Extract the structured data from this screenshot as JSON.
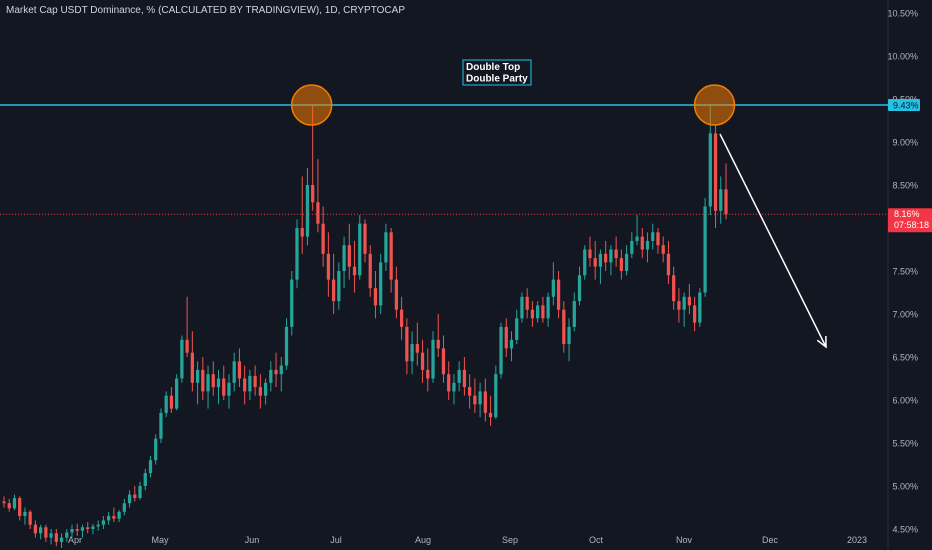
{
  "header": {
    "title": "Market Cap USDT Dominance, % (CALCULATED BY TRADINGVIEW), 1D, CRYPTOCAP"
  },
  "annotation": {
    "line1": "Double Top",
    "line2": "Double Party"
  },
  "price_labels": {
    "level": "9.43%",
    "current": "8.16%",
    "countdown": "07:58:18"
  },
  "colors": {
    "background": "#131722",
    "up": "#26a69a",
    "down": "#ef5350",
    "level_line": "#22c3e6",
    "circle": "#f57c00",
    "arrow": "#ffffff",
    "current_price": "#f23645"
  },
  "chart_data": {
    "type": "candlestick",
    "title": "Market Cap USDT Dominance, % (CALCULATED BY TRADINGVIEW), 1D, CRYPTOCAP",
    "xlabel": "",
    "ylabel": "",
    "ylim": [
      4.5,
      10.5
    ],
    "y_ticks": [
      "10.50%",
      "10.00%",
      "9.50%",
      "9.00%",
      "8.50%",
      "8.00%",
      "7.50%",
      "7.00%",
      "6.50%",
      "6.00%",
      "5.50%",
      "5.00%",
      "4.50%"
    ],
    "x_ticks": [
      "Apr",
      "May",
      "Jun",
      "Jul",
      "Aug",
      "Sep",
      "Oct",
      "Nov",
      "Dec",
      "2023"
    ],
    "grid": false,
    "horizontal_level": 9.43,
    "current_price": 8.16,
    "series": [
      {
        "values": [
          [
            4.82,
            4.88,
            4.75,
            4.8
          ],
          [
            4.8,
            4.85,
            4.7,
            4.74
          ],
          [
            4.74,
            4.9,
            4.72,
            4.86
          ],
          [
            4.86,
            4.88,
            4.6,
            4.65
          ],
          [
            4.65,
            4.75,
            4.55,
            4.7
          ],
          [
            4.7,
            4.72,
            4.5,
            4.55
          ],
          [
            4.55,
            4.6,
            4.4,
            4.45
          ],
          [
            4.45,
            4.55,
            4.38,
            4.52
          ],
          [
            4.52,
            4.55,
            4.35,
            4.4
          ],
          [
            4.4,
            4.5,
            4.32,
            4.45
          ],
          [
            4.45,
            4.5,
            4.3,
            4.35
          ],
          [
            4.35,
            4.45,
            4.28,
            4.4
          ],
          [
            4.4,
            4.5,
            4.35,
            4.46
          ],
          [
            4.46,
            4.55,
            4.4,
            4.5
          ],
          [
            4.5,
            4.56,
            4.42,
            4.48
          ],
          [
            4.48,
            4.55,
            4.4,
            4.52
          ],
          [
            4.52,
            4.58,
            4.45,
            4.5
          ],
          [
            4.5,
            4.56,
            4.44,
            4.53
          ],
          [
            4.53,
            4.6,
            4.48,
            4.55
          ],
          [
            4.55,
            4.65,
            4.5,
            4.6
          ],
          [
            4.6,
            4.7,
            4.55,
            4.65
          ],
          [
            4.65,
            4.75,
            4.58,
            4.62
          ],
          [
            4.62,
            4.72,
            4.58,
            4.7
          ],
          [
            4.7,
            4.85,
            4.66,
            4.8
          ],
          [
            4.8,
            4.95,
            4.75,
            4.9
          ],
          [
            4.9,
            5.0,
            4.82,
            4.86
          ],
          [
            4.86,
            5.05,
            4.84,
            5.0
          ],
          [
            5.0,
            5.2,
            4.95,
            5.15
          ],
          [
            5.15,
            5.35,
            5.1,
            5.3
          ],
          [
            5.3,
            5.6,
            5.25,
            5.55
          ],
          [
            5.55,
            5.9,
            5.5,
            5.85
          ],
          [
            5.85,
            6.1,
            5.8,
            6.05
          ],
          [
            6.05,
            6.15,
            5.85,
            5.9
          ],
          [
            5.9,
            6.3,
            5.88,
            6.25
          ],
          [
            6.25,
            6.75,
            6.2,
            6.7
          ],
          [
            6.7,
            7.2,
            6.5,
            6.55
          ],
          [
            6.55,
            6.8,
            6.1,
            6.2
          ],
          [
            6.2,
            6.45,
            5.95,
            6.35
          ],
          [
            6.35,
            6.5,
            6.0,
            6.1
          ],
          [
            6.1,
            6.4,
            5.9,
            6.3
          ],
          [
            6.3,
            6.45,
            6.05,
            6.15
          ],
          [
            6.15,
            6.35,
            5.95,
            6.25
          ],
          [
            6.25,
            6.4,
            6.0,
            6.05
          ],
          [
            6.05,
            6.3,
            5.9,
            6.2
          ],
          [
            6.2,
            6.55,
            6.1,
            6.45
          ],
          [
            6.45,
            6.6,
            6.15,
            6.25
          ],
          [
            6.25,
            6.4,
            5.95,
            6.1
          ],
          [
            6.1,
            6.35,
            6.0,
            6.28
          ],
          [
            6.28,
            6.4,
            6.05,
            6.15
          ],
          [
            6.15,
            6.3,
            5.9,
            6.05
          ],
          [
            6.05,
            6.25,
            5.95,
            6.2
          ],
          [
            6.2,
            6.45,
            6.1,
            6.35
          ],
          [
            6.35,
            6.55,
            6.15,
            6.3
          ],
          [
            6.3,
            6.5,
            6.1,
            6.4
          ],
          [
            6.4,
            6.95,
            6.35,
            6.85
          ],
          [
            6.85,
            7.5,
            6.75,
            7.4
          ],
          [
            7.4,
            8.1,
            7.3,
            8.0
          ],
          [
            8.0,
            8.6,
            7.7,
            7.9
          ],
          [
            7.9,
            8.7,
            7.8,
            8.5
          ],
          [
            8.5,
            9.43,
            8.2,
            8.3
          ],
          [
            8.3,
            8.8,
            7.95,
            8.05
          ],
          [
            8.05,
            8.25,
            7.55,
            7.7
          ],
          [
            7.7,
            7.95,
            7.2,
            7.4
          ],
          [
            7.4,
            7.7,
            7.0,
            7.15
          ],
          [
            7.15,
            7.6,
            7.05,
            7.5
          ],
          [
            7.5,
            7.9,
            7.3,
            7.8
          ],
          [
            7.8,
            8.05,
            7.4,
            7.55
          ],
          [
            7.55,
            7.85,
            7.25,
            7.45
          ],
          [
            7.45,
            8.15,
            7.4,
            8.05
          ],
          [
            8.05,
            8.1,
            7.6,
            7.7
          ],
          [
            7.7,
            7.8,
            7.2,
            7.3
          ],
          [
            7.3,
            7.5,
            6.95,
            7.1
          ],
          [
            7.1,
            7.7,
            7.0,
            7.6
          ],
          [
            7.6,
            8.05,
            7.5,
            7.95
          ],
          [
            7.95,
            8.0,
            7.25,
            7.4
          ],
          [
            7.4,
            7.55,
            6.95,
            7.05
          ],
          [
            7.05,
            7.2,
            6.7,
            6.85
          ],
          [
            6.85,
            6.95,
            6.3,
            6.45
          ],
          [
            6.45,
            6.8,
            6.3,
            6.65
          ],
          [
            6.65,
            6.9,
            6.4,
            6.55
          ],
          [
            6.55,
            6.7,
            6.2,
            6.35
          ],
          [
            6.35,
            6.6,
            6.1,
            6.25
          ],
          [
            6.25,
            6.8,
            6.2,
            6.7
          ],
          [
            6.7,
            7.0,
            6.5,
            6.6
          ],
          [
            6.6,
            6.75,
            6.2,
            6.3
          ],
          [
            6.3,
            6.45,
            6.0,
            6.1
          ],
          [
            6.1,
            6.3,
            5.95,
            6.2
          ],
          [
            6.2,
            6.45,
            6.1,
            6.35
          ],
          [
            6.35,
            6.5,
            6.05,
            6.15
          ],
          [
            6.15,
            6.3,
            5.9,
            6.05
          ],
          [
            6.05,
            6.25,
            5.85,
            5.95
          ],
          [
            5.95,
            6.2,
            5.8,
            6.1
          ],
          [
            6.1,
            6.25,
            5.75,
            5.85
          ],
          [
            5.85,
            6.05,
            5.7,
            5.8
          ],
          [
            5.8,
            6.4,
            5.78,
            6.3
          ],
          [
            6.3,
            6.9,
            6.25,
            6.85
          ],
          [
            6.85,
            6.95,
            6.5,
            6.6
          ],
          [
            6.6,
            6.8,
            6.45,
            6.7
          ],
          [
            6.7,
            7.05,
            6.65,
            6.95
          ],
          [
            6.95,
            7.25,
            6.9,
            7.2
          ],
          [
            7.2,
            7.3,
            6.95,
            7.05
          ],
          [
            7.05,
            7.15,
            6.85,
            6.95
          ],
          [
            6.95,
            7.15,
            6.9,
            7.1
          ],
          [
            7.1,
            7.2,
            6.9,
            6.95
          ],
          [
            6.95,
            7.25,
            6.85,
            7.2
          ],
          [
            7.2,
            7.6,
            7.1,
            7.4
          ],
          [
            7.4,
            7.5,
            6.95,
            7.05
          ],
          [
            7.05,
            7.15,
            6.55,
            6.65
          ],
          [
            6.65,
            6.95,
            6.45,
            6.85
          ],
          [
            6.85,
            7.25,
            6.8,
            7.15
          ],
          [
            7.15,
            7.55,
            7.1,
            7.45
          ],
          [
            7.45,
            7.8,
            7.4,
            7.75
          ],
          [
            7.75,
            7.9,
            7.55,
            7.65
          ],
          [
            7.65,
            7.85,
            7.4,
            7.55
          ],
          [
            7.55,
            7.75,
            7.35,
            7.7
          ],
          [
            7.7,
            7.85,
            7.5,
            7.6
          ],
          [
            7.6,
            7.8,
            7.45,
            7.75
          ],
          [
            7.75,
            7.9,
            7.55,
            7.65
          ],
          [
            7.65,
            7.75,
            7.4,
            7.5
          ],
          [
            7.5,
            7.8,
            7.45,
            7.7
          ],
          [
            7.7,
            7.95,
            7.65,
            7.85
          ],
          [
            7.85,
            8.15,
            7.8,
            7.9
          ],
          [
            7.9,
            8.0,
            7.65,
            7.75
          ],
          [
            7.75,
            7.95,
            7.6,
            7.85
          ],
          [
            7.85,
            8.05,
            7.75,
            7.95
          ],
          [
            7.95,
            8.0,
            7.7,
            7.8
          ],
          [
            7.8,
            7.9,
            7.6,
            7.7
          ],
          [
            7.7,
            7.85,
            7.35,
            7.45
          ],
          [
            7.45,
            7.55,
            7.05,
            7.15
          ],
          [
            7.15,
            7.3,
            6.9,
            7.05
          ],
          [
            7.05,
            7.25,
            6.85,
            7.2
          ],
          [
            7.2,
            7.35,
            7.0,
            7.1
          ],
          [
            7.1,
            7.2,
            6.8,
            6.9
          ],
          [
            6.9,
            7.3,
            6.85,
            7.25
          ],
          [
            7.25,
            8.35,
            7.2,
            8.25
          ],
          [
            8.25,
            9.43,
            8.15,
            9.1
          ],
          [
            9.1,
            9.2,
            8.0,
            8.2
          ],
          [
            8.2,
            8.6,
            8.05,
            8.45
          ],
          [
            8.45,
            8.75,
            8.1,
            8.16
          ]
        ]
      }
    ]
  }
}
